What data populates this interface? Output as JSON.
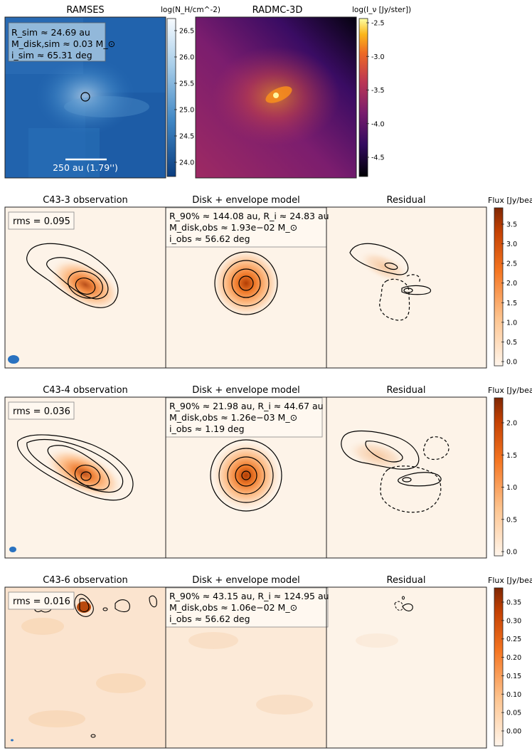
{
  "top": {
    "ramses": {
      "title": "RAMSES",
      "colorbar_label": "log(N_H/cm^-2)",
      "colorbar_ticks": [
        "26.5",
        "26.0",
        "25.5",
        "25.0",
        "24.5",
        "24.0"
      ],
      "info": [
        "R_sim ≈ 24.69 au",
        "M_disk,sim ≈ 0.03 M_⊙",
        "i_sim ≈ 65.31 deg"
      ],
      "scalebar_label": "250 au (1.79'')",
      "colors": {
        "background": "#1f5fa8",
        "core": "#cfe3f4"
      }
    },
    "radmc": {
      "title": "RADMC-3D",
      "colorbar_label": "log(I_ν [Jy/ster])",
      "colorbar_ticks": [
        "-2.5",
        "-3.0",
        "-3.5",
        "-4.0",
        "-4.5"
      ]
    }
  },
  "rows": [
    {
      "obs_title": "C43-3 observation",
      "model_title": "Disk + envelope model",
      "residual_title": "Residual",
      "colorbar_label": "Flux [Jy/beam]",
      "colorbar_ticks": [
        "3.5",
        "3.0",
        "2.5",
        "2.0",
        "1.5",
        "1.0",
        "0.5",
        "0.0"
      ],
      "rms": "rms = 0.095",
      "model_info": [
        "R_90% ≈ 144.08 au, R_i ≈ 24.83 au",
        "M_disk,obs ≈ 1.93e−02 M_⊙",
        "i_obs ≈ 56.62 deg"
      ]
    },
    {
      "obs_title": "C43-4 observation",
      "model_title": "Disk + envelope model",
      "residual_title": "Residual",
      "colorbar_label": "Flux [Jy/beam]",
      "colorbar_ticks": [
        "2.0",
        "1.5",
        "1.0",
        "0.5",
        "0.0"
      ],
      "rms": "rms = 0.036",
      "model_info": [
        "R_90% ≈ 21.98 au, R_i ≈ 44.67 au",
        "M_disk,obs ≈ 1.26e−03 M_⊙",
        "i_obs ≈ 1.19 deg"
      ]
    },
    {
      "obs_title": "C43-6 observation",
      "model_title": "Disk + envelope model",
      "residual_title": "Residual",
      "colorbar_label": "Flux [Jy/beam]",
      "colorbar_ticks": [
        "0.35",
        "0.30",
        "0.25",
        "0.20",
        "0.15",
        "0.10",
        "0.05",
        "0.00"
      ],
      "rms": "rms = 0.016",
      "model_info": [
        "R_90% ≈ 43.15 au, R_i ≈ 124.95 au",
        "M_disk,obs ≈ 1.06e−02 M_⊙",
        "i_obs ≈ 56.62 deg"
      ]
    }
  ]
}
